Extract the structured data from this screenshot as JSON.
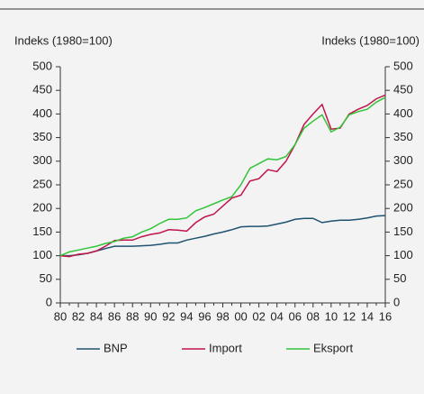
{
  "chart_data": {
    "type": "line",
    "y_label": "Indeks (1980=100)",
    "y2_label": "Indeks (1980=100)",
    "categories": [
      "80",
      null,
      "82",
      null,
      "84",
      null,
      "86",
      null,
      "88",
      null,
      "90",
      null,
      "92",
      null,
      "94",
      null,
      "96",
      null,
      "98",
      null,
      "00",
      null,
      "02",
      null,
      "04",
      null,
      "06",
      null,
      "08",
      null,
      "10",
      null,
      "12",
      null,
      "14",
      null,
      "16"
    ],
    "series": [
      {
        "name": "BNP",
        "color": "#1f5270",
        "values": [
          100,
          100,
          102,
          105,
          110,
          115,
          120,
          120,
          120,
          121,
          122,
          124,
          127,
          127,
          133,
          137,
          141,
          146,
          150,
          155,
          161,
          162,
          162,
          163,
          167,
          171,
          177,
          179,
          179,
          170,
          173,
          175,
          175,
          177,
          180,
          184,
          185
        ]
      },
      {
        "name": "Import",
        "color": "#c0154a",
        "values": [
          100,
          98,
          103,
          105,
          110,
          120,
          132,
          133,
          133,
          140,
          145,
          148,
          155,
          154,
          152,
          170,
          182,
          188,
          205,
          222,
          228,
          258,
          263,
          282,
          278,
          300,
          335,
          378,
          400,
          420,
          368,
          370,
          400,
          410,
          418,
          432,
          440
        ]
      },
      {
        "name": "Eksport",
        "color": "#33c43a",
        "values": [
          100,
          108,
          112,
          116,
          120,
          126,
          130,
          137,
          140,
          150,
          157,
          168,
          177,
          177,
          180,
          195,
          202,
          210,
          218,
          225,
          250,
          285,
          295,
          305,
          303,
          310,
          335,
          370,
          385,
          398,
          362,
          372,
          398,
          405,
          410,
          425,
          435
        ]
      }
    ],
    "ylim": [
      0,
      500
    ],
    "yticks": [
      0,
      50,
      100,
      150,
      200,
      250,
      300,
      350,
      400,
      450,
      500
    ],
    "y2lim": [
      0,
      500
    ],
    "y2ticks": [
      0,
      50,
      100,
      150,
      200,
      250,
      300,
      350,
      400,
      450,
      500
    ],
    "legend": "bottom"
  }
}
